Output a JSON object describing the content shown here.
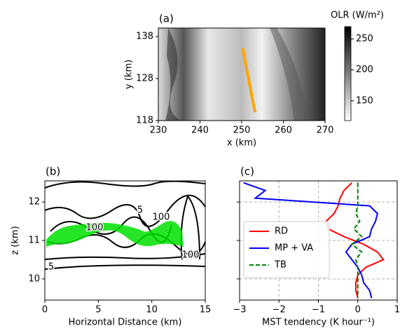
{
  "chart_data": [
    {
      "type": "image",
      "panel_label": "(a)",
      "x_label": "x (km)",
      "y_label": "y (km)",
      "colorbar_label": "OLR (W/m²)",
      "xlim": [
        230,
        270
      ],
      "xticks": [
        230,
        240,
        250,
        260,
        270
      ],
      "ylim": [
        118,
        140
      ],
      "yticks": [
        118,
        128,
        138
      ],
      "clim": [
        118,
        270
      ],
      "cticks": [
        150,
        200,
        250
      ],
      "line": {
        "x": [
          250.2,
          253.2
        ],
        "y": [
          135.3,
          120
        ],
        "color": "#ffa500"
      }
    },
    {
      "type": "contour",
      "panel_label": "(b)",
      "x_label": "Horizontal Distance (km)",
      "y_label": "z (km)",
      "xlim": [
        0,
        15
      ],
      "xticks": [
        0,
        5,
        10,
        15
      ],
      "ylim": [
        9.45,
        12.55
      ],
      "yticks": [
        10,
        11,
        12
      ],
      "contour_labels": [
        "100",
        "5",
        "100",
        "100",
        "5"
      ]
    },
    {
      "type": "line",
      "panel_label": "(c)",
      "x_label": "MST tendency (K hour⁻¹)",
      "xlim": [
        -3,
        1
      ],
      "xticks": [
        {
          "value": -3,
          "label": "−3"
        },
        {
          "value": -2,
          "label": "−2"
        },
        {
          "value": -1,
          "label": "−1"
        },
        0,
        1
      ],
      "ylim": [
        9.45,
        12.55
      ],
      "yticks": [
        10,
        11,
        12
      ],
      "grid": true,
      "legend": "center left",
      "y": [
        12.5,
        12.3,
        12.1,
        11.9,
        11.7,
        11.5,
        11.3,
        11.1,
        10.9,
        10.7,
        10.5,
        10.3,
        10.1,
        9.9,
        9.7,
        9.5
      ],
      "series": [
        {
          "name": "RD",
          "color": "#ff0000",
          "dash": false,
          "values": [
            -0.15,
            -0.35,
            -0.45,
            -0.5,
            -0.6,
            -0.8,
            -0.75,
            -0.35,
            0.15,
            0.5,
            0.65,
            0.2,
            0.0,
            -0.05,
            -0.05,
            0.0
          ]
        },
        {
          "name": "MP + VA",
          "color": "#0000ff",
          "dash": false,
          "values": [
            -2.9,
            -2.35,
            -2.6,
            0.3,
            0.5,
            0.45,
            0.35,
            0.3,
            -0.15,
            -0.3,
            -0.15,
            0.0,
            0.1,
            0.15,
            0.3,
            0.35
          ]
        },
        {
          "name": "TB",
          "color": "#008000",
          "dash": true,
          "values": [
            0.0,
            0.0,
            0.0,
            0.0,
            -0.05,
            0.05,
            -0.1,
            0.1,
            -0.15,
            0.1,
            -0.05,
            0.0,
            0.0,
            0.0,
            0.0,
            0.0
          ]
        }
      ]
    }
  ]
}
